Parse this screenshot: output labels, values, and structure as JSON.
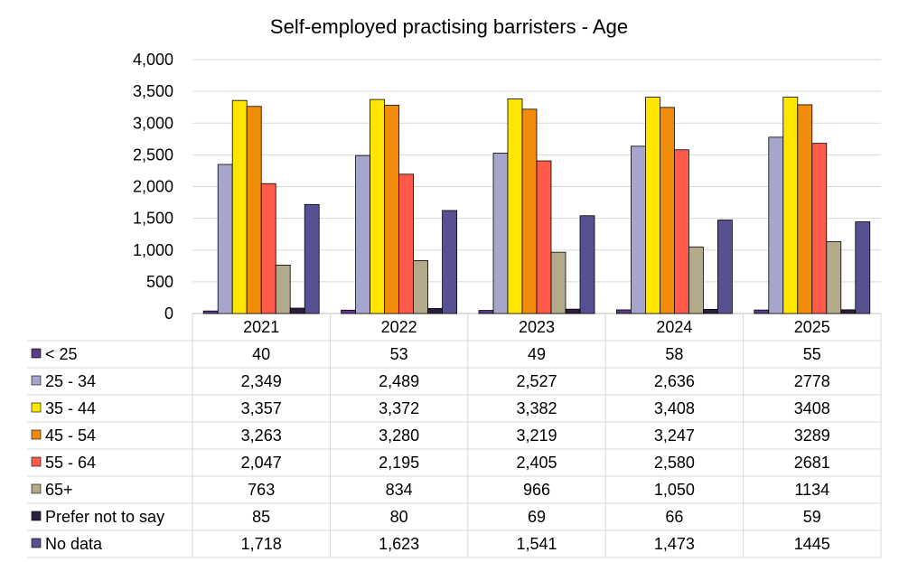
{
  "chart_data": {
    "type": "bar",
    "title": "Self-employed practising barristers - Age",
    "xlabel": "",
    "ylabel": "",
    "ylim": [
      0,
      4000
    ],
    "yticks": [
      "0",
      "500",
      "1,000",
      "1,500",
      "2,000",
      "2,500",
      "3,000",
      "3,500",
      "4,000"
    ],
    "ytick_values": [
      0,
      500,
      1000,
      1500,
      2000,
      2500,
      3000,
      3500,
      4000
    ],
    "grid": true,
    "legend": "data-table",
    "categories": [
      "2021",
      "2022",
      "2023",
      "2024",
      "2025"
    ],
    "series": [
      {
        "name": "< 25",
        "color": "#5B3C88",
        "values": [
          40,
          53,
          49,
          58,
          55
        ],
        "labels": [
          "40",
          "53",
          "49",
          "58",
          "55"
        ]
      },
      {
        "name": "25 - 34",
        "color": "#A6A6CC",
        "values": [
          2349,
          2489,
          2527,
          2636,
          2778
        ],
        "labels": [
          "2,349",
          "2,489",
          "2,527",
          "2,636",
          "2778"
        ]
      },
      {
        "name": "35 - 44",
        "color": "#FFE500",
        "values": [
          3357,
          3372,
          3382,
          3408,
          3408
        ],
        "labels": [
          "3,357",
          "3,372",
          "3,382",
          "3,408",
          "3408"
        ]
      },
      {
        "name": "45 - 54",
        "color": "#F08C0A",
        "values": [
          3263,
          3280,
          3219,
          3247,
          3289
        ],
        "labels": [
          "3,263",
          "3,280",
          "3,219",
          "3,247",
          "3289"
        ]
      },
      {
        "name": "55 - 64",
        "color": "#FF5A4A",
        "values": [
          2047,
          2195,
          2405,
          2580,
          2681
        ],
        "labels": [
          "2,047",
          "2,195",
          "2,405",
          "2,580",
          "2681"
        ]
      },
      {
        "name": "65+",
        "color": "#B3AA8C",
        "values": [
          763,
          834,
          966,
          1050,
          1134
        ],
        "labels": [
          "763",
          "834",
          "966",
          "1,050",
          "1134"
        ]
      },
      {
        "name": "Prefer not to say",
        "color": "#2A1F3F",
        "values": [
          85,
          80,
          69,
          66,
          59
        ],
        "labels": [
          "85",
          "80",
          "69",
          "66",
          "59"
        ]
      },
      {
        "name": "No data",
        "color": "#575093",
        "values": [
          1718,
          1623,
          1541,
          1473,
          1445
        ],
        "labels": [
          "1,718",
          "1,623",
          "1,541",
          "1,473",
          "1445"
        ]
      }
    ]
  }
}
